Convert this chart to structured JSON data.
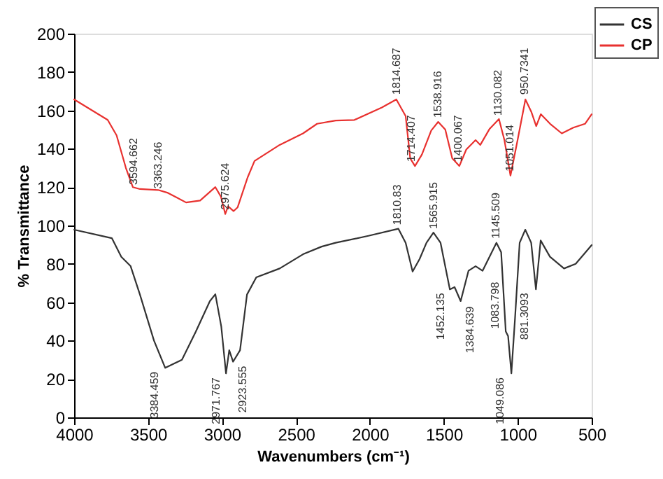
{
  "chart_data": {
    "type": "line",
    "xlabel": "Wavenumbers (cm⁻¹)",
    "ylabel": "% Transmittance",
    "xlim": [
      4000,
      500
    ],
    "xticks": [
      4000,
      3500,
      3000,
      2500,
      2000,
      1500,
      1000,
      500
    ],
    "ylim": [
      0,
      200
    ],
    "yticks": [
      0,
      20,
      40,
      60,
      80,
      100,
      120,
      140,
      160,
      180,
      200
    ],
    "grid": false,
    "legend": "top right",
    "marker": "none",
    "line_style": "solid",
    "series": [
      {
        "name": "CS",
        "color": "#333333",
        "x": [
          4000,
          3745,
          3681,
          3618,
          3555,
          3460,
          3384,
          3271,
          3177,
          3082,
          3045,
          3005,
          2973,
          2951,
          2925,
          2878,
          2831,
          2768,
          2610,
          2452,
          2326,
          2231,
          2010,
          1807,
          1758,
          1711,
          1664,
          1617,
          1570,
          1522,
          1459,
          1427,
          1386,
          1333,
          1285,
          1238,
          1144,
          1112,
          1081,
          1065,
          1043,
          1018,
          987,
          949,
          909,
          877,
          845,
          782,
          687,
          608,
          500
        ],
        "values": [
          97.8,
          93.4,
          83.7,
          78.8,
          64,
          40,
          25.8,
          30,
          44.7,
          60.6,
          64.2,
          47.4,
          22.9,
          35,
          29,
          35,
          64,
          73,
          77.6,
          85,
          89,
          91,
          94.6,
          98.3,
          91,
          76,
          82.5,
          91,
          96.3,
          91,
          66.7,
          67.9,
          60.6,
          76.4,
          78.8,
          76.4,
          91,
          86,
          44.8,
          42.3,
          22.9,
          52,
          91,
          97.8,
          91,
          66.7,
          92.2,
          83.7,
          77.6,
          80,
          89.8
        ]
      },
      {
        "name": "CP",
        "color": "#e8312f",
        "x": [
          4000,
          3773,
          3713,
          3650,
          3603,
          3555,
          3432,
          3366,
          3243,
          3148,
          3045,
          3007,
          2978,
          2959,
          2922,
          2894,
          2827,
          2780,
          2610,
          2452,
          2357,
          2231,
          2105,
          1919,
          1821,
          1758,
          1727,
          1695,
          1648,
          1585,
          1538,
          1490,
          1443,
          1395,
          1348,
          1285,
          1253,
          1190,
          1127,
          1090,
          1049,
          1001,
          948,
          907,
          875,
          844,
          781,
          702,
          624,
          545,
          500
        ],
        "values": [
          165.7,
          155,
          147,
          130,
          120,
          119,
          118.5,
          117,
          112,
          113,
          120,
          115,
          106,
          110,
          107.5,
          109.5,
          125,
          133.6,
          142,
          148,
          153,
          154.7,
          155,
          161.5,
          165.7,
          157,
          135,
          131,
          137,
          149.5,
          154,
          150,
          135,
          131,
          139.6,
          144.5,
          142,
          150.4,
          155.5,
          144.5,
          126,
          144.5,
          165.7,
          159,
          151.8,
          158,
          153,
          148,
          151,
          153,
          158
        ]
      }
    ],
    "annotations": [
      {
        "text": "3594.662",
        "x": 3594,
        "y": 119
      },
      {
        "text": "3363.246",
        "x": 3363,
        "y": 117
      },
      {
        "text": "2975.624",
        "x": 2975,
        "y": 106
      },
      {
        "text": "1814.687",
        "x": 1814,
        "y": 166
      },
      {
        "text": "1714.407",
        "x": 1714,
        "y": 131
      },
      {
        "text": "1538.916",
        "x": 1538,
        "y": 154
      },
      {
        "text": "1400.067",
        "x": 1400,
        "y": 131
      },
      {
        "text": "1130.082",
        "x": 1130,
        "y": 155
      },
      {
        "text": "1051.014",
        "x": 1051,
        "y": 126
      },
      {
        "text": "950.7341",
        "x": 950,
        "y": 166
      },
      {
        "text": "3384.459",
        "x": 3384,
        "y": 26
      },
      {
        "text": "2971.767",
        "x": 2971,
        "y": 23
      },
      {
        "text": "2923.555",
        "x": 2923,
        "y": 29
      },
      {
        "text": "1810.83",
        "x": 1810,
        "y": 98
      },
      {
        "text": "1565.915",
        "x": 1565,
        "y": 96
      },
      {
        "text": "1452.135",
        "x": 1452,
        "y": 67
      },
      {
        "text": "1384.639",
        "x": 1384,
        "y": 60
      },
      {
        "text": "1145.509",
        "x": 1145,
        "y": 91
      },
      {
        "text": "1083.798",
        "x": 1083,
        "y": 44
      },
      {
        "text": "1049.086",
        "x": 1049,
        "y": 23
      },
      {
        "text": "881.3093",
        "x": 881,
        "y": 67
      }
    ]
  }
}
